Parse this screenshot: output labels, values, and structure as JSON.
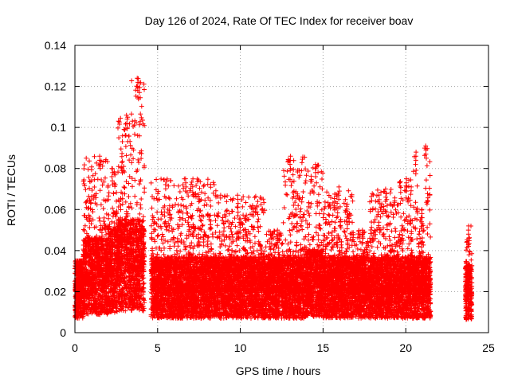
{
  "chart_data": {
    "type": "scatter",
    "title": "Day 126 of 2024, Rate Of TEC Index for receiver boav",
    "xlabel": "GPS time / hours",
    "ylabel": "ROTI / TECUs",
    "xlim": [
      0,
      25
    ],
    "ylim": [
      0,
      0.14
    ],
    "xticks": [
      0,
      5,
      10,
      15,
      20,
      25
    ],
    "xtick_labels": [
      "0",
      "5",
      "10",
      "15",
      "20",
      "25"
    ],
    "yticks": [
      0,
      0.02,
      0.04,
      0.06,
      0.08,
      0.1,
      0.12,
      0.14
    ],
    "ytick_labels": [
      "0",
      "0.02",
      "0.04",
      "0.06",
      "0.08",
      "0.1",
      "0.12",
      "0.14"
    ],
    "grid": true,
    "marker": "plus",
    "marker_color": "#ff0000",
    "series": [
      {
        "name": "ROTI",
        "note": "dense point cloud; coverage segments with approximate base level and maximum (hours, TECU)",
        "segments": [
          {
            "x_start": 0.0,
            "x_end": 0.5,
            "base": 0.02,
            "max": 0.035
          },
          {
            "x_start": 0.5,
            "x_end": 2.0,
            "base": 0.025,
            "max": 0.086
          },
          {
            "x_start": 2.0,
            "x_end": 2.6,
            "base": 0.028,
            "max": 0.08
          },
          {
            "x_start": 2.6,
            "x_end": 3.4,
            "base": 0.03,
            "max": 0.106
          },
          {
            "x_start": 3.4,
            "x_end": 4.2,
            "base": 0.03,
            "max": 0.124
          },
          {
            "x_start": 4.6,
            "x_end": 8.8,
            "base": 0.02,
            "max": 0.075
          },
          {
            "x_start": 8.8,
            "x_end": 11.5,
            "base": 0.02,
            "max": 0.067
          },
          {
            "x_start": 11.5,
            "x_end": 12.6,
            "base": 0.02,
            "max": 0.05
          },
          {
            "x_start": 12.6,
            "x_end": 14.0,
            "base": 0.02,
            "max": 0.086
          },
          {
            "x_start": 14.0,
            "x_end": 15.0,
            "base": 0.022,
            "max": 0.082
          },
          {
            "x_start": 15.0,
            "x_end": 16.8,
            "base": 0.02,
            "max": 0.071
          },
          {
            "x_start": 16.8,
            "x_end": 17.8,
            "base": 0.02,
            "max": 0.05
          },
          {
            "x_start": 17.8,
            "x_end": 19.6,
            "base": 0.02,
            "max": 0.07
          },
          {
            "x_start": 19.6,
            "x_end": 20.4,
            "base": 0.02,
            "max": 0.075
          },
          {
            "x_start": 20.4,
            "x_end": 20.7,
            "base": 0.02,
            "max": 0.088
          },
          {
            "x_start": 20.7,
            "x_end": 21.1,
            "base": 0.02,
            "max": 0.06
          },
          {
            "x_start": 21.1,
            "x_end": 21.5,
            "base": 0.02,
            "max": 0.091
          },
          {
            "x_start": 23.6,
            "x_end": 24.0,
            "base": 0.018,
            "max": 0.052
          }
        ]
      }
    ]
  }
}
